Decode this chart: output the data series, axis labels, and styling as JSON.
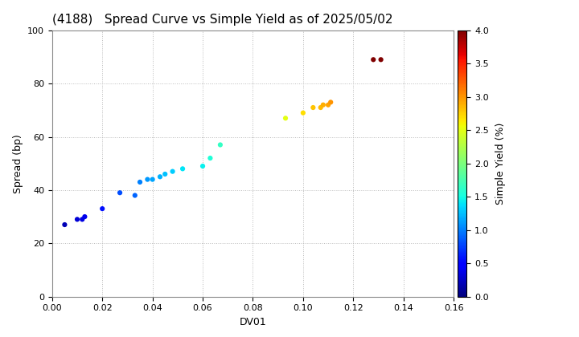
{
  "title": "(4188)   Spread Curve vs Simple Yield as of 2025/05/02",
  "xlabel": "DV01",
  "ylabel": "Spread (bp)",
  "xlim": [
    0.0,
    0.16
  ],
  "ylim": [
    0,
    100
  ],
  "xticks": [
    0.0,
    0.02,
    0.04,
    0.06,
    0.08,
    0.1,
    0.12,
    0.14,
    0.16
  ],
  "yticks": [
    0,
    20,
    40,
    60,
    80,
    100
  ],
  "colorbar_label": "Simple Yield (%)",
  "colorbar_vmin": 0.0,
  "colorbar_vmax": 4.0,
  "colorbar_ticks": [
    0.0,
    0.5,
    1.0,
    1.5,
    2.0,
    2.5,
    3.0,
    3.5,
    4.0
  ],
  "points": [
    {
      "dv01": 0.005,
      "spread": 27,
      "yield": 0.2
    },
    {
      "dv01": 0.01,
      "spread": 29,
      "yield": 0.3
    },
    {
      "dv01": 0.012,
      "spread": 29,
      "yield": 0.35
    },
    {
      "dv01": 0.013,
      "spread": 30,
      "yield": 0.38
    },
    {
      "dv01": 0.02,
      "spread": 33,
      "yield": 0.55
    },
    {
      "dv01": 0.027,
      "spread": 39,
      "yield": 0.8
    },
    {
      "dv01": 0.033,
      "spread": 38,
      "yield": 0.9
    },
    {
      "dv01": 0.035,
      "spread": 43,
      "yield": 1.0
    },
    {
      "dv01": 0.038,
      "spread": 44,
      "yield": 1.1
    },
    {
      "dv01": 0.04,
      "spread": 44,
      "yield": 1.15
    },
    {
      "dv01": 0.043,
      "spread": 45,
      "yield": 1.2
    },
    {
      "dv01": 0.045,
      "spread": 46,
      "yield": 1.25
    },
    {
      "dv01": 0.048,
      "spread": 47,
      "yield": 1.3
    },
    {
      "dv01": 0.052,
      "spread": 48,
      "yield": 1.4
    },
    {
      "dv01": 0.06,
      "spread": 49,
      "yield": 1.45
    },
    {
      "dv01": 0.063,
      "spread": 52,
      "yield": 1.55
    },
    {
      "dv01": 0.067,
      "spread": 57,
      "yield": 1.65
    },
    {
      "dv01": 0.093,
      "spread": 67,
      "yield": 2.5
    },
    {
      "dv01": 0.1,
      "spread": 69,
      "yield": 2.7
    },
    {
      "dv01": 0.104,
      "spread": 71,
      "yield": 2.8
    },
    {
      "dv01": 0.107,
      "spread": 71,
      "yield": 2.85
    },
    {
      "dv01": 0.108,
      "spread": 72,
      "yield": 2.9
    },
    {
      "dv01": 0.11,
      "spread": 72,
      "yield": 2.95
    },
    {
      "dv01": 0.111,
      "spread": 73,
      "yield": 3.0
    },
    {
      "dv01": 0.128,
      "spread": 89,
      "yield": 4.0
    },
    {
      "dv01": 0.131,
      "spread": 89,
      "yield": 4.05
    }
  ],
  "background_color": "#ffffff",
  "grid_color": "#bbbbbb",
  "title_fontsize": 11,
  "scatter_size": 20,
  "tick_fontsize": 8,
  "label_fontsize": 9
}
